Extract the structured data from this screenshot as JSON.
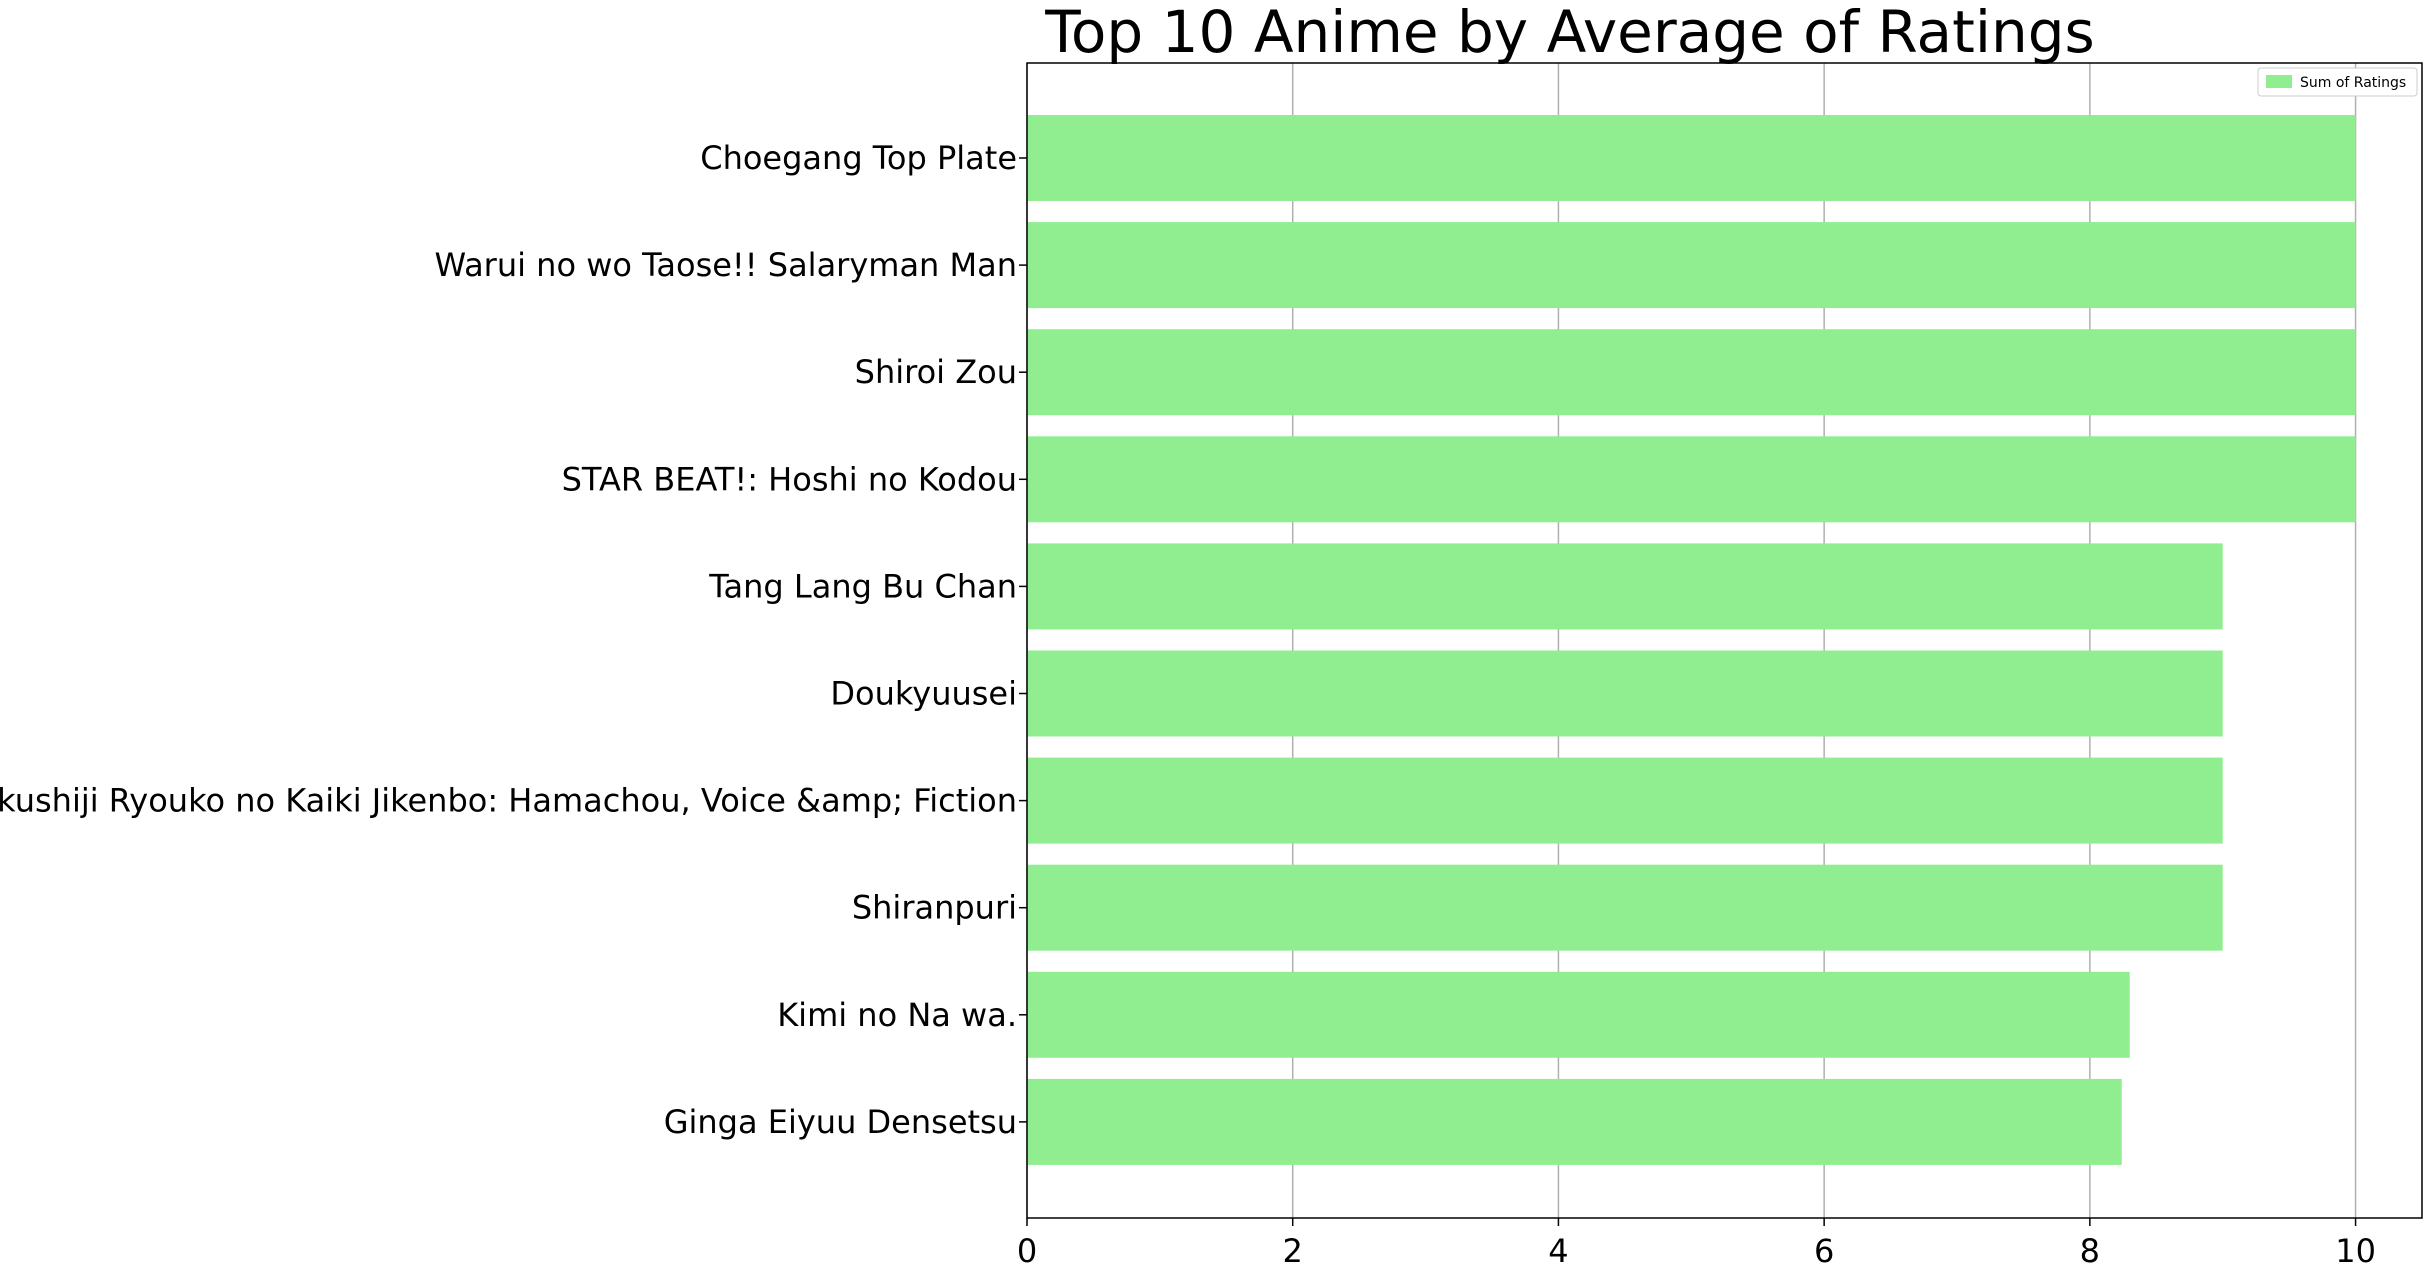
{
  "chart_data": {
    "type": "bar",
    "orientation": "horizontal",
    "title": "Top 10 Anime by Average of Ratings",
    "xlabel": "",
    "ylabel": "",
    "categories": [
      "Choegang Top Plate",
      "Warui no wo Taose!! Salaryman Man",
      "Shiroi Zou",
      "STAR BEAT!: Hoshi no Kodou",
      "Tang Lang Bu Chan",
      "Doukyuusei",
      "Yakushiji Ryouko no Kaiki Jikenbo: Hamachou, Voice &amp; Fiction",
      "Shiranpuri",
      "Kimi no Na wa.",
      "Ginga Eiyuu Densetsu"
    ],
    "series": [
      {
        "name": "Sum of Ratings",
        "color": "#90ee90",
        "values": [
          10,
          10,
          10,
          10,
          9,
          9,
          9,
          9,
          8.3,
          8.24
        ]
      }
    ],
    "xlim": [
      0,
      10.5
    ],
    "xticks": [
      "0",
      "2",
      "4",
      "6",
      "8",
      "10"
    ],
    "xtick_values": [
      0,
      2,
      4,
      6,
      8,
      10
    ],
    "grid": "x",
    "legend": "top-right",
    "colors": {
      "bar": "#90ee90",
      "grid": "#b0b0b0",
      "axis": "#000000",
      "background": "#ffffff"
    }
  }
}
